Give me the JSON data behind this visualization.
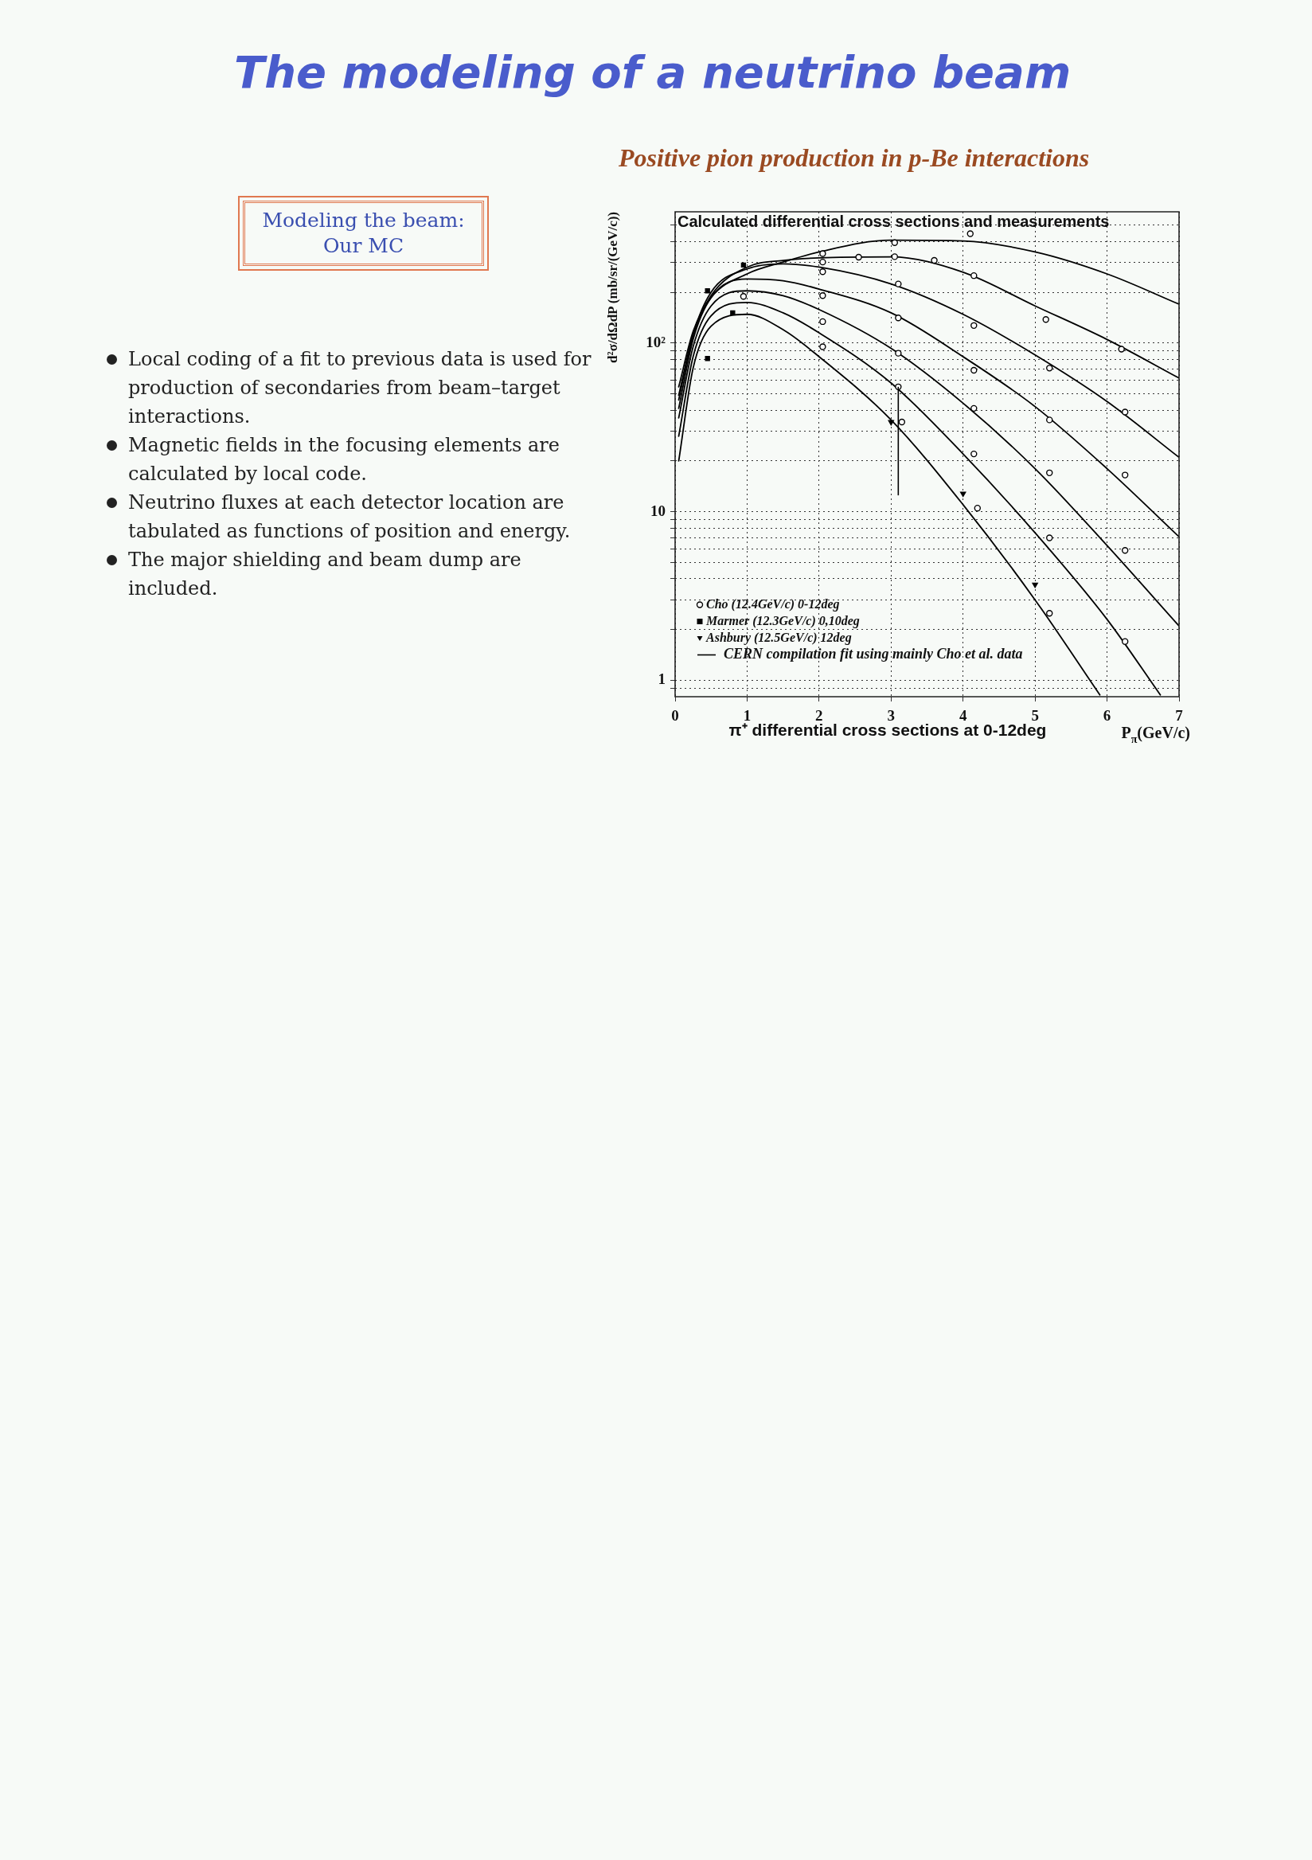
{
  "chart_data": {
    "type": "line",
    "title": "The modeling of a neutrino beam",
    "subtitle": "Positive pion production in p-Be interactions",
    "xlabel": "P$_{π}$(GeV/c)",
    "ylabel": "d²σ/dΩdP (mb/sr/(GeV/c))",
    "annotations": [
      "Calculated differential cross sections and measurements",
      "π⁺ differential cross sections at 0-12deg",
      "Modeling the beam:",
      "Our MC",
      "Local coding of a fit to previous data is used for production of secondaries from beam–target interactions.",
      "Magnetic fields in the focusing elements are calculated by local code.",
      "Neutrino fluxes at each detector location are tabulated as functions of position and energy.",
      "The major shielding and beam dump are included."
    ],
    "xlim": [
      0,
      7
    ],
    "xticks": [
      0,
      1,
      2,
      3,
      4,
      5,
      6,
      7
    ],
    "ylim": [
      0.8,
      600
    ],
    "yticks": [
      {
        "value": 0.9,
        "label": null
      },
      1,
      {
        "value": 2,
        "label": null
      },
      {
        "value": 3,
        "label": null
      },
      {
        "value": 4,
        "label": null
      },
      {
        "value": 5,
        "label": null
      },
      {
        "value": 6,
        "label": null
      },
      {
        "value": 7,
        "label": null
      },
      {
        "value": 8,
        "label": null
      },
      {
        "value": 9,
        "label": null
      },
      10,
      {
        "value": 20,
        "label": null
      },
      {
        "value": 30,
        "label": null
      },
      {
        "value": 40,
        "label": null
      },
      {
        "value": 50,
        "label": null
      },
      {
        "value": 60,
        "label": null
      },
      {
        "value": 70,
        "label": null
      },
      {
        "value": 80,
        "label": null
      },
      {
        "value": 90,
        "label": null
      },
      {
        "value": 100,
        "label": "10²"
      },
      {
        "value": 200,
        "label": null
      },
      {
        "value": 300,
        "label": null
      },
      {
        "value": 400,
        "label": null
      },
      {
        "value": 500,
        "label": null
      }
    ],
    "log": true,
    "grid": true,
    "legend": "bottom left",
    "series": [
      {
        "name": "Cho (12.4GeV/c) 0-12deg",
        "type": "scatter",
        "marker": "circle",
        "color": "#000000",
        "x": [
          6.2,
          6.25,
          6.25,
          6.25,
          6.25,
          5.15,
          5.2,
          5.2,
          5.2,
          5.2,
          5.2,
          4.1,
          4.15,
          4.15,
          4.15,
          4.15,
          4.15,
          4.2,
          3.6,
          3.05,
          3.05,
          3.1,
          3.1,
          3.1,
          3.1,
          3.15,
          2.55,
          2.05,
          2.05,
          2.05,
          2.05,
          2.05,
          2.05,
          0.95
        ],
        "values": [
          92,
          39,
          16.5,
          5.9,
          1.7,
          138,
          71,
          35,
          17,
          7,
          2.5,
          445,
          251,
          127,
          69,
          41,
          22,
          10.5,
          309,
          394,
          325,
          224,
          141,
          87,
          55,
          34,
          323,
          339,
          302,
          265,
          191,
          134,
          95,
          189
        ],
        "errors": [
          null,
          null,
          null,
          null,
          null,
          null,
          null,
          null,
          null,
          null,
          null,
          null,
          null,
          null,
          null,
          null,
          null,
          null,
          null,
          null,
          null,
          null,
          null,
          null,
          [
            12.5,
            55
          ],
          null,
          null,
          null,
          null,
          null,
          null,
          null,
          null,
          null
        ]
      },
      {
        "name": "Marmer (12.3GeV/c) 0,10deg",
        "type": "scatter",
        "marker": "square",
        "color": "#000000",
        "x": [
          0.95,
          0.8,
          0.45,
          0.45
        ],
        "values": [
          290,
          151,
          204,
          81
        ]
      },
      {
        "name": "Ashbury (12.5GeV/c) 12deg",
        "type": "scatter",
        "marker": "triangle",
        "color": "#000000",
        "x": [
          3,
          4,
          5
        ],
        "values": [
          34,
          12.8,
          3.7
        ]
      },
      {
        "name": "CERN compilation fit using mainly Cho et al. data",
        "type": "line",
        "line_style": "solid",
        "color": "#000000",
        "x": [
          0.05,
          0.25,
          0.5,
          1,
          1.5,
          2,
          3,
          4,
          5,
          6,
          7
        ],
        "values": [
          55,
          117,
          186,
          257,
          302,
          347,
          407,
          403,
          347,
          257,
          170
        ]
      },
      {
        "type": "line",
        "line_style": "solid",
        "color": "#000000",
        "x": [
          0.05,
          0.25,
          0.5,
          1,
          1.5,
          2,
          3,
          4,
          5,
          6,
          7
        ],
        "values": [
          49,
          112,
          191,
          282,
          309,
          320,
          324,
          263,
          166,
          105,
          62
        ]
      },
      {
        "type": "line",
        "line_style": "solid",
        "color": "#000000",
        "x": [
          0.05,
          0.25,
          0.5,
          1,
          1.5,
          2,
          3,
          4,
          5,
          6,
          7
        ],
        "values": [
          46,
          112,
          200,
          275,
          295,
          282,
          224,
          148,
          85,
          45,
          21
        ]
      },
      {
        "type": "line",
        "line_style": "solid",
        "color": "#000000",
        "x": [
          0.05,
          0.25,
          0.5,
          1,
          1.5,
          2,
          3,
          4,
          5,
          6,
          7
        ],
        "values": [
          41,
          105,
          186,
          240,
          234,
          209,
          151,
          83,
          42,
          18,
          7.1
        ]
      },
      {
        "type": "line",
        "line_style": "solid",
        "color": "#000000",
        "x": [
          0.05,
          0.25,
          0.5,
          1,
          1.5,
          2,
          3,
          4,
          5,
          6,
          7
        ],
        "values": [
          36,
          95,
          166,
          204,
          191,
          158,
          93,
          44,
          18,
          6.3,
          2.1
        ]
      },
      {
        "type": "line",
        "line_style": "solid",
        "color": "#000000",
        "x": [
          0.05,
          0.25,
          0.5,
          1,
          1.5,
          2,
          3,
          4,
          5,
          6,
          6.74
        ],
        "values": [
          28,
          83,
          145,
          174,
          151,
          115,
          58,
          22,
          7.5,
          2.3,
          0.82
        ]
      },
      {
        "type": "line",
        "line_style": "solid",
        "color": "#000000",
        "x": [
          0.05,
          0.25,
          0.5,
          1,
          1.5,
          2,
          3,
          4,
          5,
          5.9
        ],
        "values": [
          20,
          71,
          126,
          148,
          120,
          83,
          35,
          11,
          3,
          0.82
        ]
      }
    ]
  }
}
